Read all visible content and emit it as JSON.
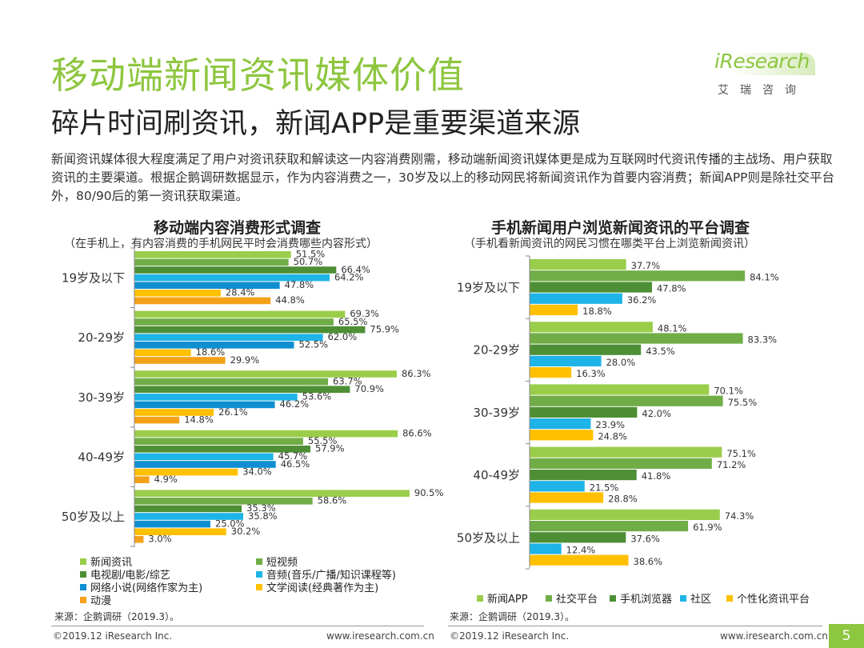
{
  "header": {
    "title": "移动端新闻资讯媒体价值",
    "subtitle": "碎片时间刷资讯，新闻APP是重要渠道来源",
    "intro": "新闻资讯媒体很大程度满足了用户对资讯获取和解读这一内容消费刚需，移动端新闻资讯媒体更是成为互联网时代资讯传播的主战场、用户获取资讯的主要渠道。根据企鹅调研数据显示，作为内容消费之一，30岁及以上的移动网民将新闻资讯作为首要内容消费；新闻APP则是除社交平台外，80/90后的第一资讯获取渠道。"
  },
  "logo": {
    "brand_i": "i",
    "brand_rest": "Research",
    "sub": "艾瑞咨询"
  },
  "left_chart": {
    "title": "移动端内容消费形式调查",
    "subtitle": "（在手机上，有内容消费的手机网民平时会消费哪些内容形式）",
    "source": "来源：企鹅调研（2019.3）。"
  },
  "right_chart": {
    "title": "手机新闻用户浏览新闻资讯的平台调查",
    "subtitle": "（手机看新闻资讯的网民习惯在哪类平台上浏览新闻资讯）",
    "source": "来源：企鹅调研（2019.3）。"
  },
  "footer": {
    "left_copyright": "©2019.12 iResearch Inc.",
    "left_url": "www.iresearch.com.cn",
    "right_copyright": "©2019.12 iResearch Inc.",
    "right_url": "www.iresearch.com.cn",
    "page": "5"
  },
  "chart_data": [
    {
      "type": "bar",
      "orientation": "horizontal",
      "title": "移动端内容消费形式调查",
      "categories": [
        "19岁及以下",
        "20-29岁",
        "30-39岁",
        "40-49岁",
        "50岁及以上"
      ],
      "xlim": [
        0,
        100
      ],
      "value_format": "%",
      "series": [
        {
          "name": "新闻资讯",
          "color": "#9acd4a",
          "values": [
            51.5,
            69.3,
            86.3,
            86.6,
            90.5
          ],
          "labels": [
            "51.5%",
            "69.3%",
            "86.3%",
            "86.6%",
            "90.5%"
          ]
        },
        {
          "name": "短视频",
          "color": "#70ad47",
          "values": [
            50.7,
            65.5,
            63.7,
            55.5,
            58.6
          ],
          "labels": [
            "50.7%",
            "65.5%",
            "63.7%",
            "55.5%",
            "58.6%"
          ]
        },
        {
          "name": "电视剧/电影/综艺",
          "color": "#4e8f36",
          "values": [
            66.4,
            75.9,
            70.9,
            57.9,
            35.3
          ],
          "labels": [
            "66.4%",
            "75.9%",
            "70.9%",
            "57.9%",
            "35.3%"
          ]
        },
        {
          "name": "音频(音乐/广播/知识课程等)",
          "color": "#1eb4e8",
          "values": [
            64.2,
            62.0,
            53.6,
            45.7,
            35.8
          ],
          "labels": [
            "64.2%",
            "62.0%",
            "53.6%",
            "45.7%",
            "35.8%"
          ]
        },
        {
          "name": "网络小说(网络作家为主)",
          "color": "#0f8fd1",
          "values": [
            47.8,
            52.5,
            46.2,
            46.5,
            25.0
          ],
          "labels": [
            "47.8%",
            "52.5%",
            "46.2%",
            "46.5%",
            "25.0%"
          ]
        },
        {
          "name": "文学阅读(经典著作为主)",
          "color": "#ffc000",
          "values": [
            28.4,
            18.6,
            26.1,
            34.0,
            30.2
          ],
          "labels": [
            "28.4%",
            "18.6%",
            "26.1%",
            "34.0%",
            "30.2%"
          ]
        },
        {
          "name": "动漫",
          "color": "#f4a11a",
          "values": [
            44.8,
            29.9,
            14.8,
            4.9,
            3.0
          ],
          "labels": [
            "44.8%",
            "29.9%",
            "14.8%",
            "4.9%",
            "3.0%"
          ]
        }
      ],
      "legend": [
        "新闻资讯",
        "短视频",
        "电视剧/电影/综艺",
        "音频(音乐/广播/知识课程等)",
        "网络小说(网络作家为主)",
        "文学阅读(经典著作为主)",
        "动漫"
      ],
      "legend_position": "bottom"
    },
    {
      "type": "bar",
      "orientation": "horizontal",
      "title": "手机新闻用户浏览新闻资讯的平台调查",
      "categories": [
        "19岁及以下",
        "20-29岁",
        "30-39岁",
        "40-49岁",
        "50岁及以上"
      ],
      "xlim": [
        0,
        100
      ],
      "value_format": "%",
      "series": [
        {
          "name": "新闻APP",
          "color": "#9acd4a",
          "values": [
            37.7,
            48.1,
            70.1,
            75.1,
            74.3
          ],
          "labels": [
            "37.7%",
            "48.1%",
            "70.1%",
            "75.1%",
            "74.3%"
          ]
        },
        {
          "name": "社交平台",
          "color": "#70ad47",
          "values": [
            84.1,
            83.3,
            75.5,
            71.2,
            61.9
          ],
          "labels": [
            "84.1%",
            "83.3%",
            "75.5%",
            "71.2%",
            "61.9%"
          ]
        },
        {
          "name": "手机浏览器",
          "color": "#4e8f36",
          "values": [
            47.8,
            43.5,
            42.0,
            41.8,
            37.6
          ],
          "labels": [
            "47.8%",
            "43.5%",
            "42.0%",
            "41.8%",
            "37.6%"
          ]
        },
        {
          "name": "社区",
          "color": "#1eb4e8",
          "values": [
            36.2,
            28.0,
            23.9,
            21.5,
            12.4
          ],
          "labels": [
            "36.2%",
            "28.0%",
            "23.9%",
            "21.5%",
            "12.4%"
          ]
        },
        {
          "name": "个性化资讯平台",
          "color": "#ffc000",
          "values": [
            18.8,
            16.3,
            24.8,
            28.8,
            38.6
          ],
          "labels": [
            "18.8%",
            "16.3%",
            "24.8%",
            "28.8%",
            "38.6%"
          ]
        }
      ],
      "legend": [
        "新闻APP",
        "社交平台",
        "手机浏览器",
        "社区",
        "个性化资讯平台"
      ],
      "legend_position": "bottom"
    }
  ]
}
